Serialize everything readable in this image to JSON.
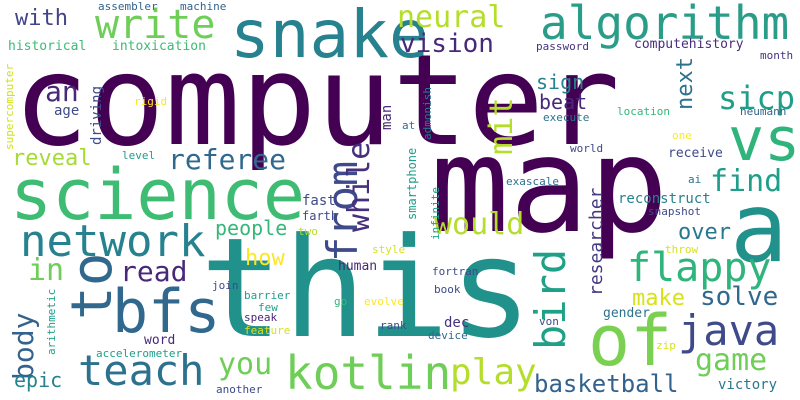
{
  "palette": {
    "p0": "#440154",
    "p1": "#482878",
    "p2": "#3e4a89",
    "p3": "#31688e",
    "p4": "#26828e",
    "p5": "#1f9e89",
    "p6": "#35b779",
    "p7": "#6ece58",
    "p8": "#b5de2b",
    "p9": "#fde725"
  },
  "words": [
    {
      "text": "computer",
      "color": "#440154"
    },
    {
      "text": "map",
      "color": "#440154"
    },
    {
      "text": "this",
      "color": "#21918c"
    },
    {
      "text": "science",
      "color": "#3fbc73"
    },
    {
      "text": "snake",
      "color": "#26828e"
    },
    {
      "text": "algorithm",
      "color": "#2a9d89"
    },
    {
      "text": "write",
      "color": "#6ece58"
    },
    {
      "text": "a",
      "color": "#21918c"
    },
    {
      "text": "vs",
      "color": "#2fb47c"
    },
    {
      "text": "to",
      "color": "#31688e"
    },
    {
      "text": "bfs",
      "color": "#31688e"
    },
    {
      "text": "network",
      "color": "#26828e"
    },
    {
      "text": "teach",
      "color": "#2c728e"
    },
    {
      "text": "of",
      "color": "#7ad151"
    },
    {
      "text": "kotlin",
      "color": "#6ece58"
    },
    {
      "text": "java",
      "color": "#3e4a89"
    },
    {
      "text": "flappy",
      "color": "#2fb47c"
    },
    {
      "text": "from",
      "color": "#3e4a89"
    },
    {
      "text": "bird",
      "color": "#1fa187"
    },
    {
      "text": "neural",
      "color": "#b5de2b"
    },
    {
      "text": "vision",
      "color": "#482878"
    },
    {
      "text": "referee",
      "color": "#31688e"
    },
    {
      "text": "sicp",
      "color": "#1f9e89"
    },
    {
      "text": "find",
      "color": "#1f9e89"
    },
    {
      "text": "while",
      "color": "#472f7d"
    },
    {
      "text": "would",
      "color": "#b5de2b"
    },
    {
      "text": "mit",
      "color": "#b5de2b"
    },
    {
      "text": "play",
      "color": "#b5de2b"
    },
    {
      "text": "you",
      "color": "#6ece58"
    },
    {
      "text": "read",
      "color": "#482878"
    },
    {
      "text": "in",
      "color": "#6ece58"
    },
    {
      "text": "body",
      "color": "#33638d"
    },
    {
      "text": "game",
      "color": "#6ece58"
    },
    {
      "text": "solve",
      "color": "#31688e"
    },
    {
      "text": "basketball",
      "color": "#33638d"
    },
    {
      "text": "an",
      "color": "#482878"
    },
    {
      "text": "with",
      "color": "#414487"
    },
    {
      "text": "reveal",
      "color": "#a5db36"
    },
    {
      "text": "epic",
      "color": "#26828e"
    },
    {
      "text": "people",
      "color": "#35b779"
    },
    {
      "text": "how",
      "color": "#fde725"
    },
    {
      "text": "make",
      "color": "#d8e219"
    },
    {
      "text": "over",
      "color": "#2a788e"
    },
    {
      "text": "researcher",
      "color": "#443a83"
    },
    {
      "text": "next",
      "color": "#2c728e"
    },
    {
      "text": "sign",
      "color": "#26828e"
    },
    {
      "text": "beat",
      "color": "#482878"
    },
    {
      "text": "victory",
      "color": "#2a788e"
    },
    {
      "text": "historical",
      "color": "#3bbb75"
    },
    {
      "text": "intoxication",
      "color": "#3bbb75"
    },
    {
      "text": "assembler",
      "color": "#33638d"
    },
    {
      "text": "machine",
      "color": "#33638d"
    },
    {
      "text": "password",
      "color": "#46327e"
    },
    {
      "text": "computehistory",
      "color": "#472d7b"
    },
    {
      "text": "month",
      "color": "#46327e"
    },
    {
      "text": "supercomputer",
      "color": "#d2e21b"
    },
    {
      "text": "driving",
      "color": "#3e4a89"
    },
    {
      "text": "age",
      "color": "#3e4a89"
    },
    {
      "text": "rigid",
      "color": "#fde725"
    },
    {
      "text": "level",
      "color": "#1f9e89"
    },
    {
      "text": "man",
      "color": "#482878"
    },
    {
      "text": "admonish",
      "color": "#2a788e"
    },
    {
      "text": "at",
      "color": "#2c728e"
    },
    {
      "text": "execute",
      "color": "#2c728e"
    },
    {
      "text": "location",
      "color": "#35b779"
    },
    {
      "text": "neumann",
      "color": "#33638d"
    },
    {
      "text": "one",
      "color": "#fde725"
    },
    {
      "text": "world",
      "color": "#3e4a89"
    },
    {
      "text": "receive",
      "color": "#3e4a89"
    },
    {
      "text": "smartphone",
      "color": "#1f9e89"
    },
    {
      "text": "exascale",
      "color": "#2c728e"
    },
    {
      "text": "ai",
      "color": "#2c728e"
    },
    {
      "text": "reconstruct",
      "color": "#26828e"
    },
    {
      "text": "fast",
      "color": "#3e4a89"
    },
    {
      "text": "farth",
      "color": "#3e4a89"
    },
    {
      "text": "two",
      "color": "#b5de2b"
    },
    {
      "text": "infinite",
      "color": "#1f9e89"
    },
    {
      "text": "snapshot",
      "color": "#3e4a89"
    },
    {
      "text": "throw",
      "color": "#d8e219"
    },
    {
      "text": "style",
      "color": "#d8e219"
    },
    {
      "text": "human",
      "color": "#482878"
    },
    {
      "text": "fortran",
      "color": "#3e4a89"
    },
    {
      "text": "join",
      "color": "#3e4a89"
    },
    {
      "text": "barrier",
      "color": "#1f9e89"
    },
    {
      "text": "few",
      "color": "#1f9e89"
    },
    {
      "text": "speak",
      "color": "#482878"
    },
    {
      "text": "feature",
      "color": "#d8e219"
    },
    {
      "text": "go",
      "color": "#35b779"
    },
    {
      "text": "evolve",
      "color": "#fde725"
    },
    {
      "text": "book",
      "color": "#3e4a89"
    },
    {
      "text": "von",
      "color": "#3e4a89"
    },
    {
      "text": "gender",
      "color": "#2c728e"
    },
    {
      "text": "rank",
      "color": "#3e4a89"
    },
    {
      "text": "dec",
      "color": "#46327e"
    },
    {
      "text": "device",
      "color": "#31688e"
    },
    {
      "text": "zip",
      "color": "#d8e219"
    },
    {
      "text": "arithmetic",
      "color": "#1f9e89"
    },
    {
      "text": "word",
      "color": "#482878"
    },
    {
      "text": "accelerometer",
      "color": "#1f9e89"
    },
    {
      "text": "another",
      "color": "#3e4a89"
    }
  ]
}
